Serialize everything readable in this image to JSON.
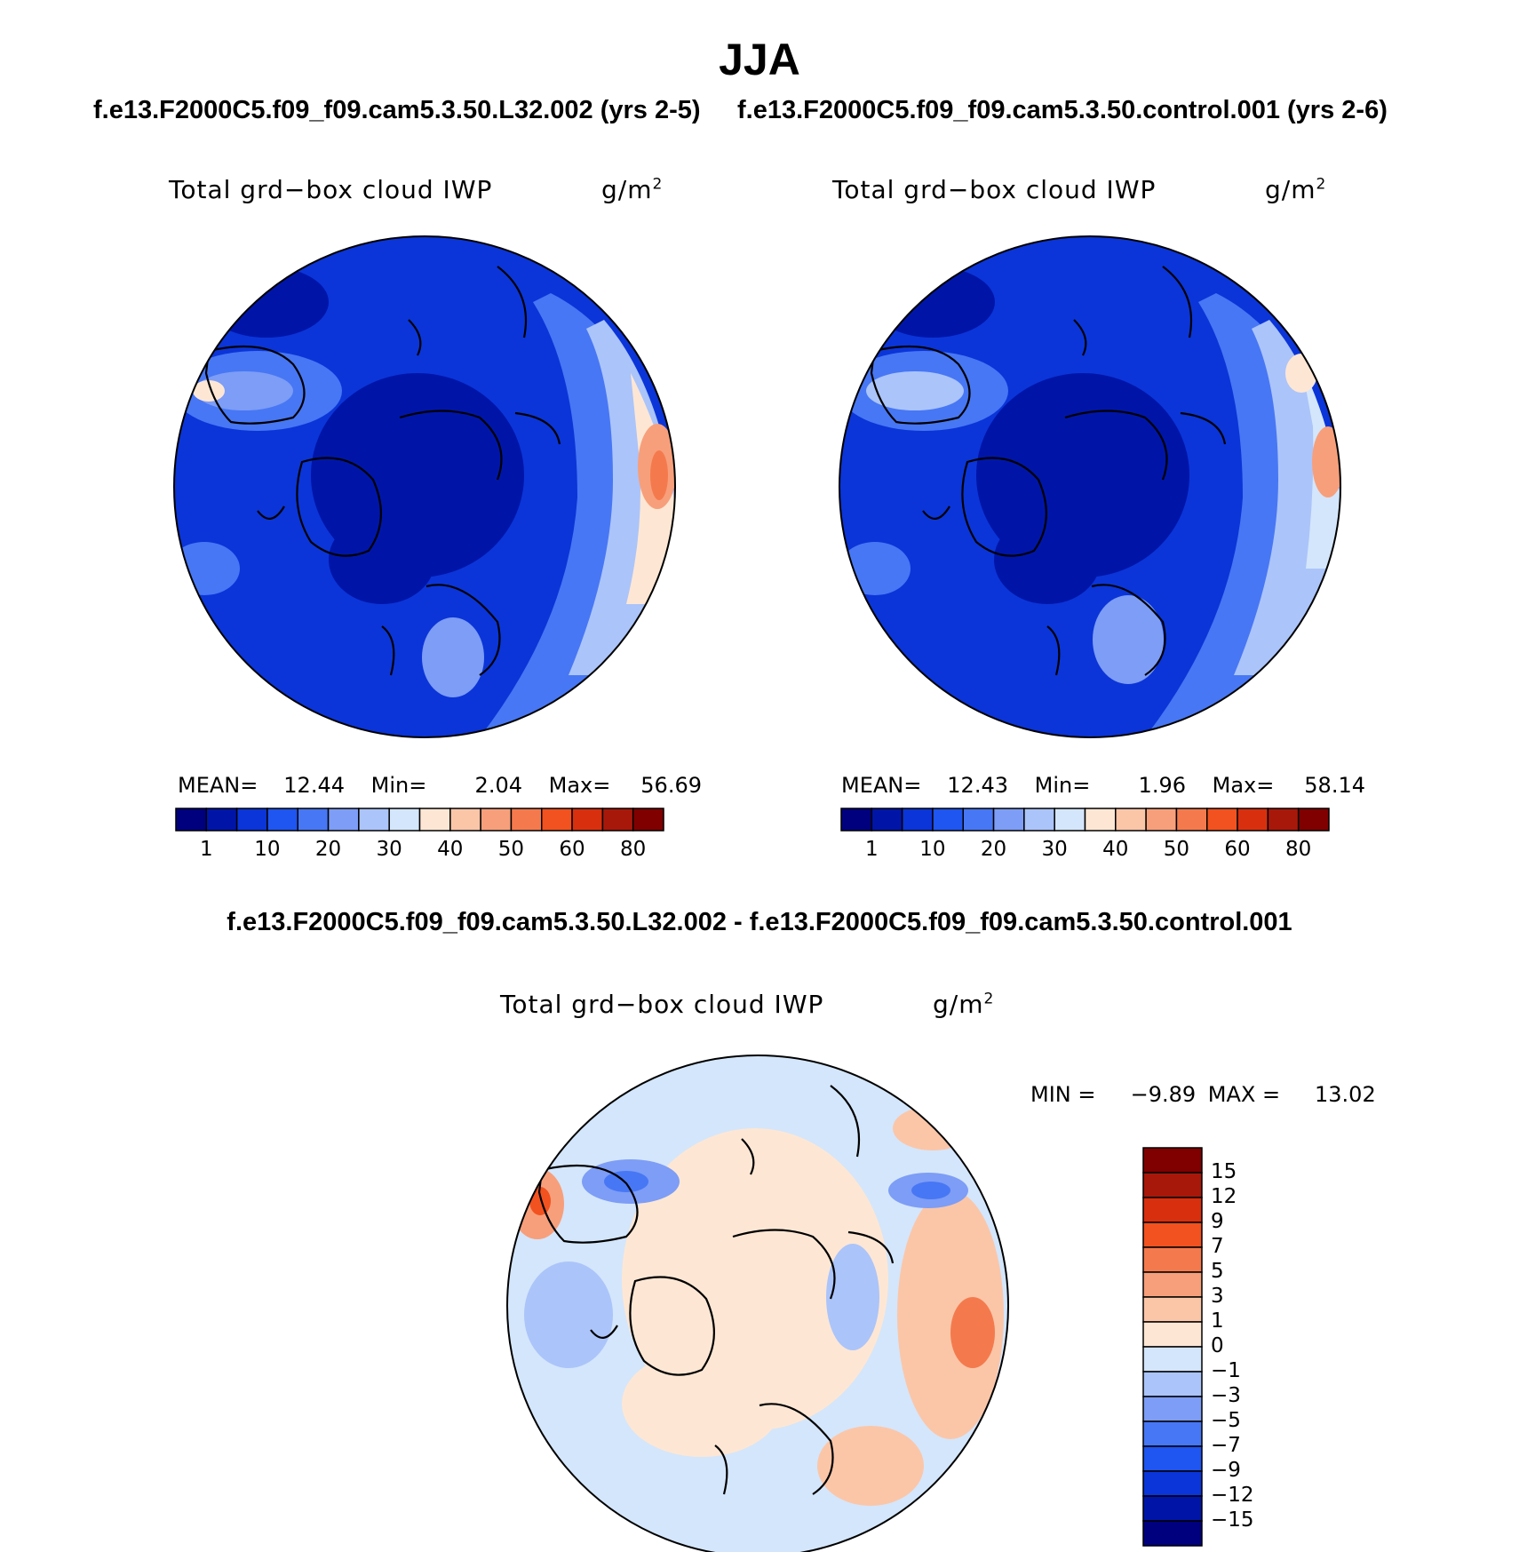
{
  "figure": {
    "title": "JJA",
    "left_case": "f.e13.F2000C5.f09_f09.cam5.3.50.L32.002 (yrs 2-5)",
    "right_case": "f.e13.F2000C5.f09_f09.cam5.3.50.control.001 (yrs 2-6)",
    "diff_title": "f.e13.F2000C5.f09_f09.cam5.3.50.L32.002 - f.e13.F2000C5.f09_f09.cam5.3.50.control.001"
  },
  "chart_data": [
    {
      "type": "heatmap",
      "projection": "polar-stereographic north",
      "variable": "Total grd−box cloud IWP",
      "units": "g/m",
      "units_exp": "2",
      "stats": {
        "mean_label": "MEAN=",
        "mean": "12.44",
        "min_label": "Min=",
        "min": "2.04",
        "max_label": "Max=",
        "max": "56.69"
      },
      "colorbar": {
        "orientation": "horizontal",
        "colors": [
          "#00007f",
          "#0015a8",
          "#0b35d8",
          "#1f55f0",
          "#4777f4",
          "#7d9df6",
          "#abc4fa",
          "#d4e6fb",
          "#fde7d4",
          "#fbc6a8",
          "#f79f7b",
          "#f47a4d",
          "#f2521f",
          "#d8300f",
          "#a8180a",
          "#800000"
        ],
        "labels": [
          "1",
          "10",
          "20",
          "30",
          "40",
          "50",
          "60",
          "80"
        ]
      }
    },
    {
      "type": "heatmap",
      "projection": "polar-stereographic north",
      "variable": "Total grd−box cloud IWP",
      "units": "g/m",
      "units_exp": "2",
      "stats": {
        "mean_label": "MEAN=",
        "mean": "12.43",
        "min_label": "Min=",
        "min": "1.96",
        "max_label": "Max=",
        "max": "58.14"
      },
      "colorbar": {
        "orientation": "horizontal",
        "colors": [
          "#00007f",
          "#0015a8",
          "#0b35d8",
          "#1f55f0",
          "#4777f4",
          "#7d9df6",
          "#abc4fa",
          "#d4e6fb",
          "#fde7d4",
          "#fbc6a8",
          "#f79f7b",
          "#f47a4d",
          "#f2521f",
          "#d8300f",
          "#a8180a",
          "#800000"
        ],
        "labels": [
          "1",
          "10",
          "20",
          "30",
          "40",
          "50",
          "60",
          "80"
        ]
      }
    },
    {
      "type": "heatmap",
      "projection": "polar-stereographic north",
      "variable": "Total grd−box cloud IWP",
      "units": "g/m",
      "units_exp": "2",
      "stats": {
        "min_label": "MIN =",
        "min": "−9.89",
        "max_label": "MAX =",
        "max": "13.02"
      },
      "colorbar": {
        "orientation": "vertical",
        "colors": [
          "#800000",
          "#a8180a",
          "#d8300f",
          "#f2521f",
          "#f47a4d",
          "#f79f7b",
          "#fbc6a8",
          "#fde7d4",
          "#d4e6fb",
          "#abc4fa",
          "#7d9df6",
          "#4777f4",
          "#1f55f0",
          "#0b35d8",
          "#0015a8",
          "#00007f"
        ],
        "labels": [
          "15",
          "12",
          "9",
          "7",
          "5",
          "3",
          "1",
          "0",
          "−1",
          "−3",
          "−5",
          "−7",
          "−9",
          "−12",
          "−15"
        ]
      }
    }
  ]
}
